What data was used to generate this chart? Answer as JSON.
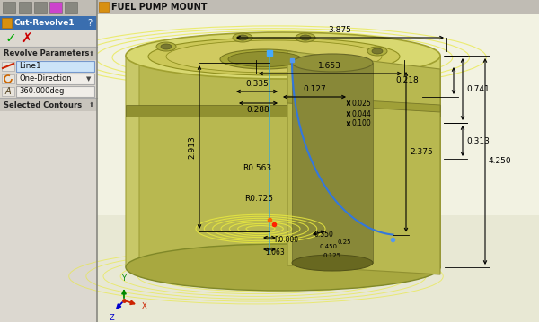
{
  "bg_color": "#d4d0c8",
  "title_bar_text": "FUEL PUMP MOUNT",
  "panel_title": "Cut-Revolve1",
  "panel_sections": [
    "Revolve Parameters",
    "Selected Contours"
  ],
  "panel_fields": [
    "Line1",
    "One-Direction",
    "360.000deg"
  ],
  "viewport_bg": "#f0f0e0",
  "viewport_bg2": "#e8e8d0",
  "model_top_color": "#d8d870",
  "model_side_light": "#c0c058",
  "model_side_dark": "#909040",
  "model_inner_dark": "#707030",
  "model_bottom": "#a0a040",
  "model_inner_floor": "#585828",
  "model_groove": "#888848",
  "dim_color": "#000000",
  "yellow_sketch": "#e8e840",
  "blue_curve": "#3377dd",
  "cyan_line": "#44aacc",
  "axis_x": "#cc2200",
  "axis_y": "#008800",
  "axis_z": "#0000cc",
  "dimensions": {
    "d3875": "3.875",
    "d1653": "1.653",
    "d0335": "0.335",
    "d0288": "0.288",
    "d0127": "0.127",
    "d0218": "0.218",
    "d0741": "0.741",
    "d0313": "0.313",
    "d2913": "2.913",
    "dR0563": "R0.563",
    "d2375": "2.375",
    "dR0725": "R0.725",
    "d4250": "4.250",
    "d0550": "0.550",
    "d1063": "1.063",
    "dR0800": "R0.800",
    "d0100": "0.100",
    "d0025": "0.025",
    "d0044": "0.044",
    "d0450": "0.450",
    "d0125": "0.125"
  }
}
